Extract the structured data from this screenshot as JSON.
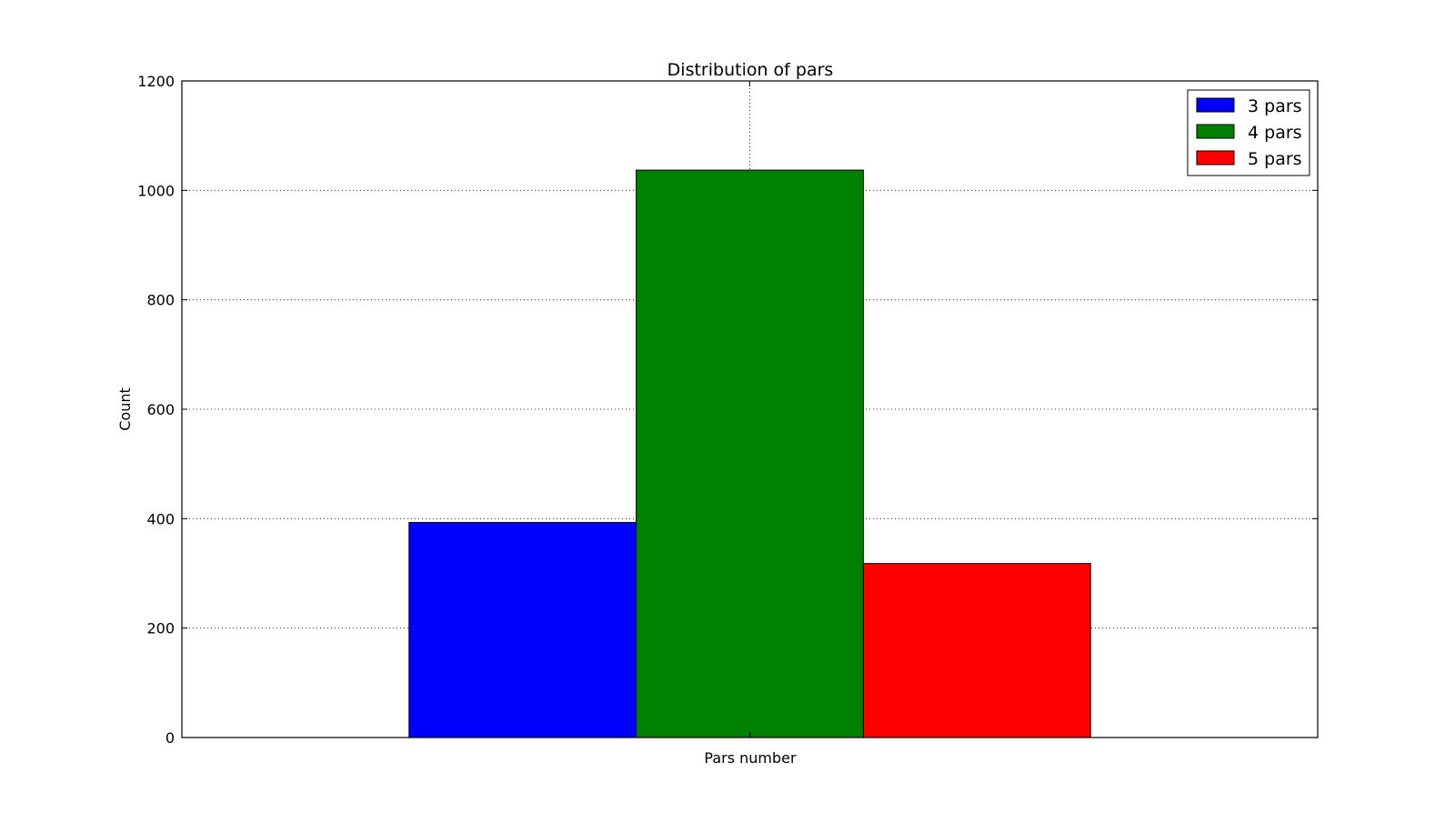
{
  "chart_data": {
    "type": "bar",
    "title": "Distribution of pars",
    "xlabel": "Pars number",
    "ylabel": "Count",
    "ylim": [
      0,
      1200
    ],
    "yticks": [
      "0",
      "200",
      "400",
      "600",
      "800",
      "1000",
      "1200"
    ],
    "grid": true,
    "legend_position": "top-right",
    "series": [
      {
        "name": "3 pars",
        "value": 393,
        "color": "#0000ff"
      },
      {
        "name": "4 pars",
        "value": 1037,
        "color": "#008000"
      },
      {
        "name": "5 pars",
        "value": 318,
        "color": "#ff0000"
      }
    ]
  }
}
